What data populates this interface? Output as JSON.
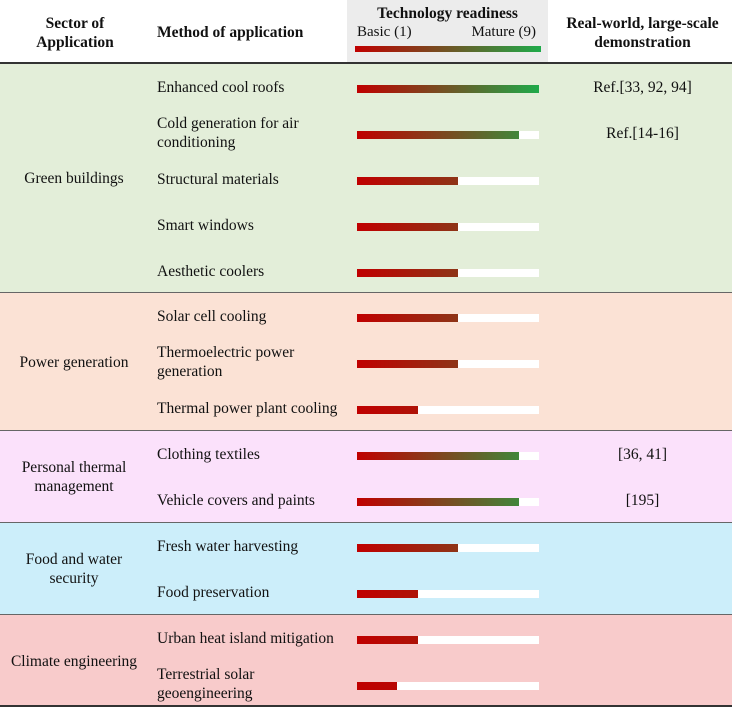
{
  "header": {
    "sector": "Sector of Application",
    "method": "Method of application",
    "tech_title": "Technology readiness",
    "tech_basic": "Basic (1)",
    "tech_mature": "Mature (9)",
    "real_world": "Real-world, large-scale demonstration"
  },
  "colors": {
    "basic": "#c00000",
    "mature": "#1faa4a",
    "green_buildings": "#e3eed9",
    "power_generation": "#fbe2d5",
    "personal_thermal": "#fbe1fb",
    "food_water": "#cceefa",
    "climate": "#f8cbcb"
  },
  "sections": [
    {
      "label": "Green buildings",
      "rows": [
        {
          "method": "Enhanced cool roofs",
          "readiness": 9,
          "ref": "Ref.[33, 92, 94]"
        },
        {
          "method": "Cold generation for air conditioning",
          "readiness": 8,
          "ref": "Ref.[14-16]"
        },
        {
          "method": "Structural materials",
          "readiness": 5,
          "ref": ""
        },
        {
          "method": "Smart windows",
          "readiness": 5,
          "ref": ""
        },
        {
          "method": "Aesthetic coolers",
          "readiness": 5,
          "ref": ""
        }
      ]
    },
    {
      "label": "Power generation",
      "rows": [
        {
          "method": "Solar cell cooling",
          "readiness": 5,
          "ref": ""
        },
        {
          "method": "Thermoelectric power generation",
          "readiness": 5,
          "ref": ""
        },
        {
          "method": "Thermal power plant cooling",
          "readiness": 3,
          "ref": ""
        }
      ]
    },
    {
      "label": "Personal thermal management",
      "rows": [
        {
          "method": "Clothing textiles",
          "readiness": 8,
          "ref": "[36, 41]"
        },
        {
          "method": "Vehicle covers and paints",
          "readiness": 8,
          "ref": "[195]"
        }
      ]
    },
    {
      "label": "Food and water security",
      "rows": [
        {
          "method": "Fresh water harvesting",
          "readiness": 5,
          "ref": ""
        },
        {
          "method": "Food preservation",
          "readiness": 3,
          "ref": ""
        }
      ]
    },
    {
      "label": "Climate engineering",
      "rows": [
        {
          "method": "Urban heat island mitigation",
          "readiness": 3,
          "ref": ""
        },
        {
          "method": "Terrestrial solar geoengineering",
          "readiness": 2,
          "ref": ""
        }
      ]
    }
  ]
}
